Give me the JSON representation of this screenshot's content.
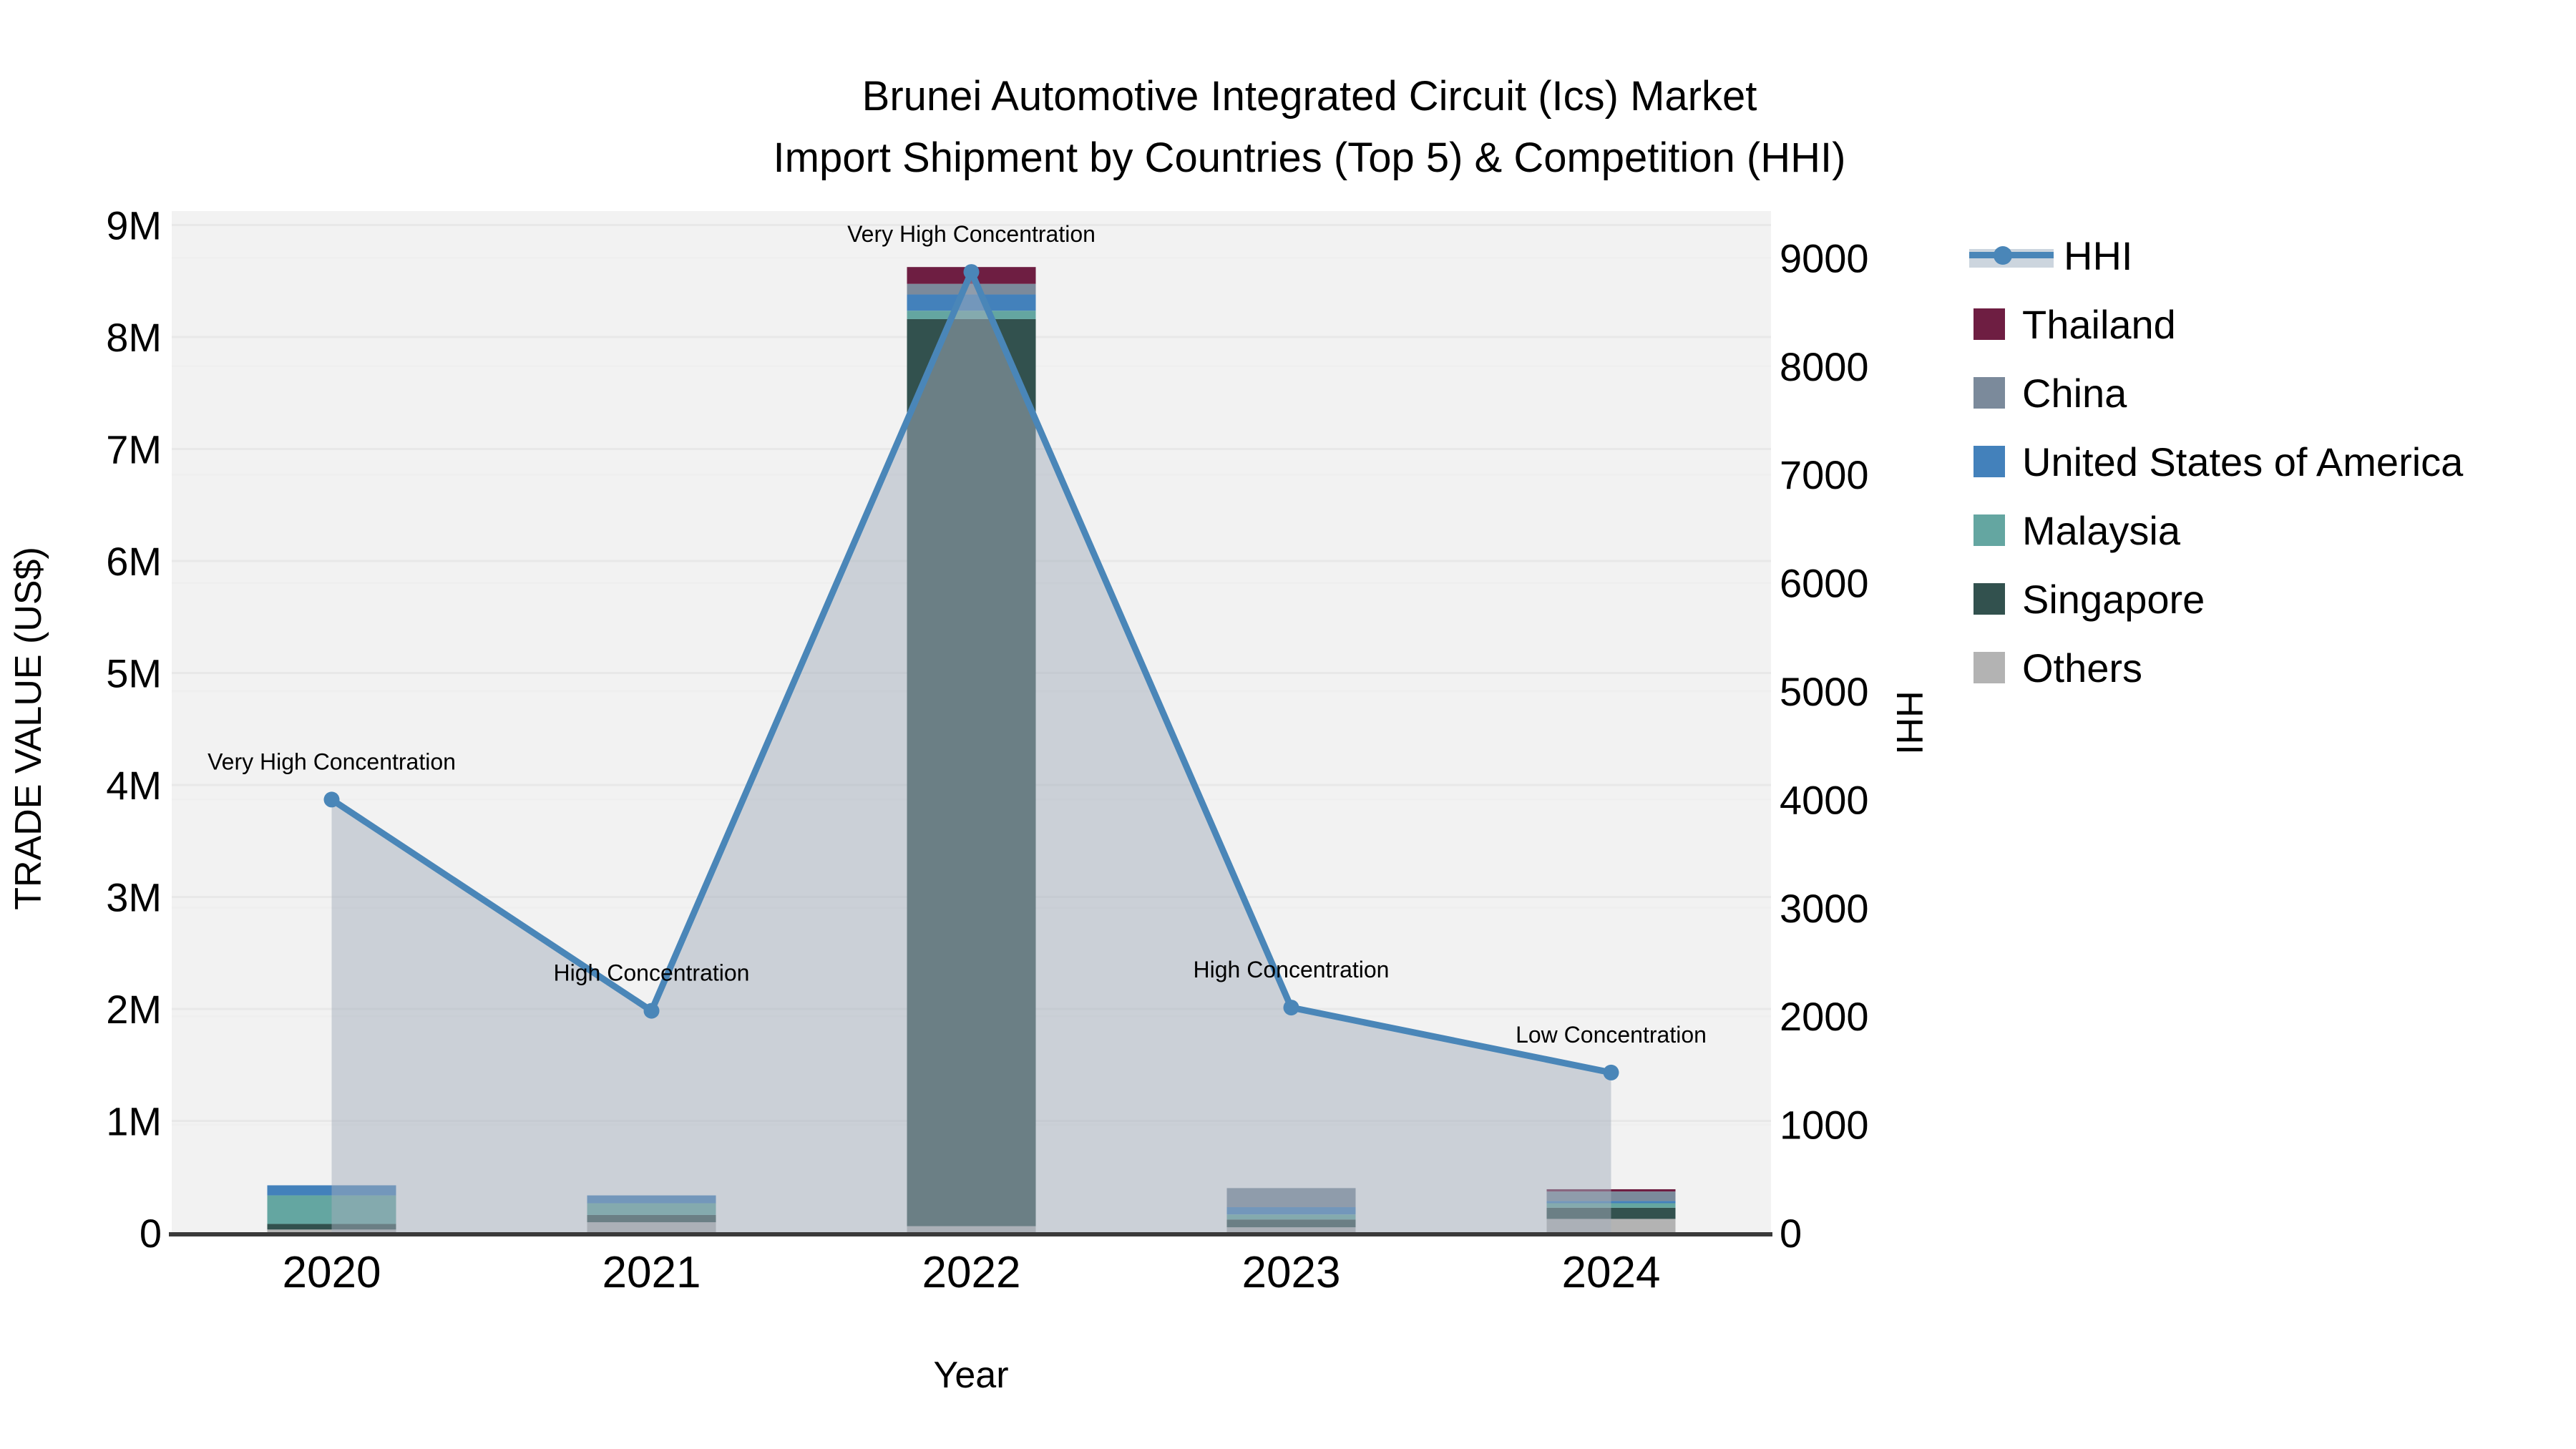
{
  "title": {
    "line1": "Brunei Automotive Integrated Circuit (Ics) Market",
    "line2": "Import Shipment by Countries (Top 5) & Competition (HHI)"
  },
  "chart_data": {
    "type": "combo-stacked-bar-and-line-area",
    "categories": [
      "2020",
      "2021",
      "2022",
      "2023",
      "2024"
    ],
    "bar_series": [
      {
        "name": "Thailand",
        "color": "#6e1e42",
        "values": [
          0,
          0,
          150000,
          0,
          20000
        ]
      },
      {
        "name": "China",
        "color": "#7b8a9b",
        "values": [
          0,
          0,
          95000,
          170000,
          85000
        ]
      },
      {
        "name": "United States of America",
        "color": "#4381bb",
        "values": [
          90000,
          70000,
          145000,
          65000,
          20000
        ]
      },
      {
        "name": "Malaysia",
        "color": "#64a6a1",
        "values": [
          255000,
          105000,
          75000,
          45000,
          40000
        ]
      },
      {
        "name": "Singapore",
        "color": "#32514e",
        "values": [
          50000,
          65000,
          8100000,
          70000,
          100000
        ]
      },
      {
        "name": "Others",
        "color": "#b3b3b3",
        "values": [
          30000,
          95000,
          60000,
          50000,
          125000
        ]
      }
    ],
    "stack_order_bottom_to_top": [
      "Others",
      "Singapore",
      "Malaysia",
      "United States of America",
      "China",
      "Thailand"
    ],
    "line_series": {
      "name": "HHI",
      "color": "#4a86b8",
      "area_fill": "rgba(164,174,188,0.5)",
      "values": [
        4000,
        2050,
        8870,
        2080,
        1480
      ]
    },
    "annotations": [
      {
        "category": "2020",
        "text": "Very High Concentration"
      },
      {
        "category": "2021",
        "text": "High Concentration"
      },
      {
        "category": "2022",
        "text": "Very High Concentration"
      },
      {
        "category": "2023",
        "text": "High Concentration"
      },
      {
        "category": "2024",
        "text": "Low Concentration"
      }
    ],
    "left_axis": {
      "title": "TRADE VALUE (US$)",
      "ticks": [
        "0",
        "1M",
        "2M",
        "3M",
        "4M",
        "5M",
        "6M",
        "7M",
        "8M",
        "9M"
      ],
      "max": 9000000
    },
    "right_axis": {
      "title": "HHI",
      "ticks": [
        "0",
        "1000",
        "2000",
        "3000",
        "4000",
        "5000",
        "6000",
        "7000",
        "8000",
        "9000"
      ],
      "max": 9000
    },
    "x_axis": {
      "title": "Year"
    },
    "plot_background": "#f2f2f2",
    "gridline_color": "#e8e8e8",
    "axis_line_color": "#3a3a3a"
  },
  "legend": {
    "items": [
      {
        "label": "HHI",
        "type": "line",
        "color": "#4a86b8"
      },
      {
        "label": "Thailand",
        "type": "swatch",
        "color": "#6e1e42"
      },
      {
        "label": "China",
        "type": "swatch",
        "color": "#7b8a9b"
      },
      {
        "label": "United States of America",
        "type": "swatch",
        "color": "#4381bb"
      },
      {
        "label": "Malaysia",
        "type": "swatch",
        "color": "#64a6a1"
      },
      {
        "label": "Singapore",
        "type": "swatch",
        "color": "#32514e"
      },
      {
        "label": "Others",
        "type": "swatch",
        "color": "#b3b3b3"
      }
    ]
  }
}
